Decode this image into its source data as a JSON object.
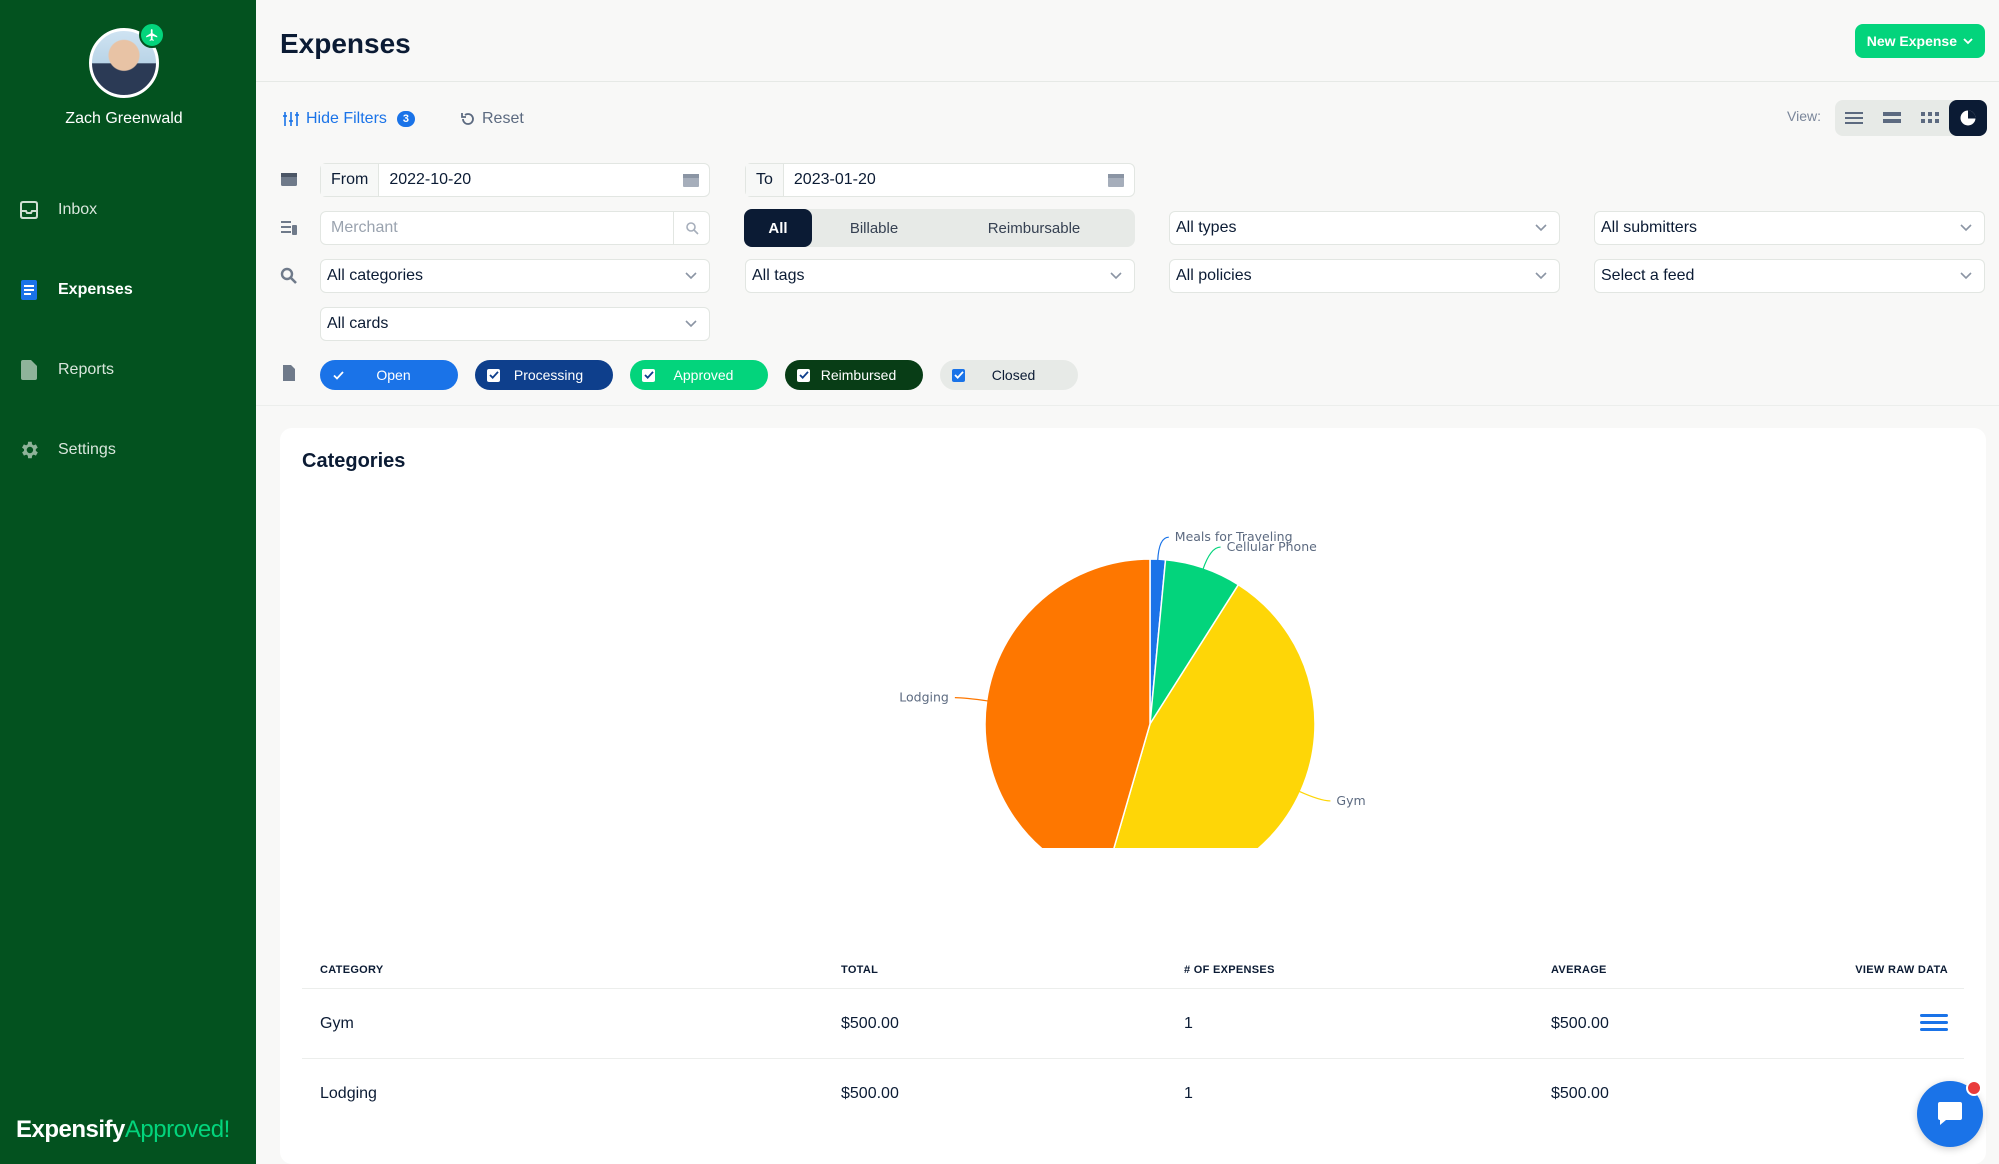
{
  "user": {
    "name": "Zach Greenwald"
  },
  "nav": {
    "items": [
      {
        "label": "Inbox",
        "icon": "inbox-icon"
      },
      {
        "label": "Expenses",
        "icon": "expenses-icon",
        "active": true
      },
      {
        "label": "Reports",
        "icon": "reports-icon"
      },
      {
        "label": "Settings",
        "icon": "gear-icon"
      }
    ]
  },
  "brand": {
    "name": "Expensify",
    "tagline": "Approved!"
  },
  "header": {
    "title": "Expenses",
    "new_expense_label": "New Expense"
  },
  "filter_bar": {
    "hide_filters_label": "Hide Filters",
    "filter_count": "3",
    "reset_label": "Reset",
    "view_label": "View:"
  },
  "filters": {
    "from_label": "From",
    "from_value": "2022-10-20",
    "to_label": "To",
    "to_value": "2023-01-20",
    "merchant_placeholder": "Merchant",
    "segment": [
      "All",
      "Billable",
      "Reimbursable"
    ],
    "types": "All types",
    "submitters": "All submitters",
    "categories": "All categories",
    "tags": "All tags",
    "policies": "All policies",
    "feed": "Select a feed",
    "cards": "All cards"
  },
  "statuses": [
    {
      "label": "Open",
      "color": "#1a73e8"
    },
    {
      "label": "Processing",
      "color": "#0e3f8c"
    },
    {
      "label": "Approved",
      "color": "#03d47c"
    },
    {
      "label": "Reimbursed",
      "color": "#083d16"
    },
    {
      "label": "Closed",
      "color": "#e7eae7"
    }
  ],
  "card": {
    "title": "Categories"
  },
  "chart_data": {
    "type": "pie",
    "slices": [
      {
        "label": "Meals for Traveling",
        "value": 1.5,
        "color": "#1a73e8"
      },
      {
        "label": "Cellular Phone",
        "value": 7.5,
        "color": "#03d47c"
      },
      {
        "label": "Gym",
        "value": 45.5,
        "color": "#fed607"
      },
      {
        "label": "Lodging",
        "value": 45.5,
        "color": "#fe7700"
      }
    ]
  },
  "table": {
    "headers": [
      "CATEGORY",
      "TOTAL",
      "# OF EXPENSES",
      "AVERAGE",
      "VIEW RAW DATA"
    ],
    "rows": [
      {
        "category": "Gym",
        "total": "$500.00",
        "count": "1",
        "average": "$500.00"
      },
      {
        "category": "Lodging",
        "total": "$500.00",
        "count": "1",
        "average": "$500.00"
      }
    ]
  },
  "colors": {
    "sidebar": "#03521f",
    "accent": "#03d47c",
    "link": "#1a73e8",
    "dark": "#0b1b34"
  }
}
